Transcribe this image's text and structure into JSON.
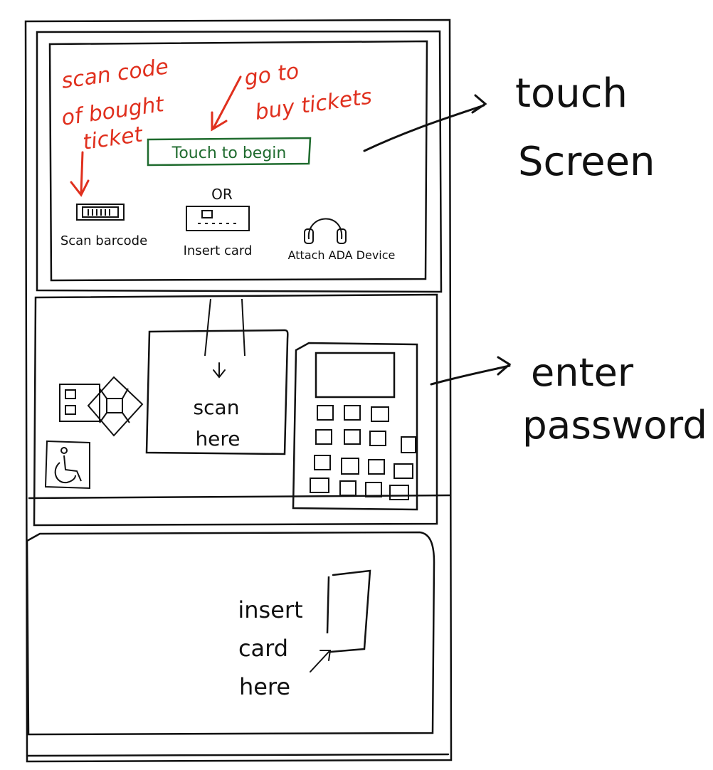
{
  "colors": {
    "ink": "#111111",
    "annotation": "#e0301e",
    "button": "#1f6b2e"
  },
  "screen": {
    "annotation_scan": [
      "scan code",
      "of bought",
      "ticket"
    ],
    "annotation_buy": [
      "go to",
      "buy tickets"
    ],
    "touch_button": "Touch to begin",
    "or_label": "OR",
    "scan_barcode_label": "Scan barcode",
    "insert_card_label": "Insert card",
    "ada_label": "Attach ADA Device"
  },
  "middle": {
    "scan_here": [
      "scan",
      "here"
    ]
  },
  "bottom": {
    "insert_card_here": [
      "insert",
      "card",
      "here"
    ]
  },
  "callouts": {
    "touch_screen": [
      "touch",
      "Screen"
    ],
    "enter_password": [
      "enter",
      "password"
    ]
  },
  "icons": {
    "barcode": "barcode-scanner-icon",
    "card_slot": "card-slot-icon",
    "headphones": "headphones-icon",
    "wheelchair": "wheelchair-icon",
    "nfc": "diamond-reader-icon"
  }
}
